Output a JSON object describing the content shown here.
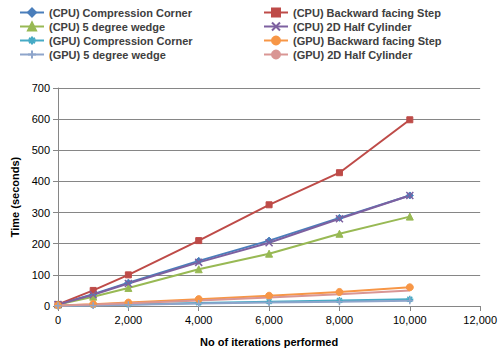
{
  "chart_data": {
    "type": "line",
    "x_label": "No of iterations performed",
    "y_label": "Time (seconds)",
    "x": [
      0,
      1000,
      2000,
      4000,
      6000,
      8000,
      10000
    ],
    "xlim": [
      0,
      12000
    ],
    "xticks": [
      0,
      2000,
      4000,
      6000,
      8000,
      10000,
      12000
    ],
    "ylim": [
      0,
      700
    ],
    "yticks": [
      0,
      100,
      200,
      300,
      400,
      500,
      600,
      700
    ],
    "grid": true,
    "legend": "top",
    "series": [
      {
        "name": "(CPU) Compression Corner",
        "color": "#4a7ebb",
        "marker": "diamond",
        "values": [
          5,
          38,
          75,
          145,
          210,
          283,
          355
        ]
      },
      {
        "name": "(CPU) Backward facing Step",
        "color": "#be4b48",
        "marker": "square",
        "values": [
          5,
          50,
          100,
          210,
          325,
          428,
          598
        ]
      },
      {
        "name": "(CPU) 5 degree wedge",
        "color": "#98b954",
        "marker": "triangle",
        "values": [
          5,
          30,
          58,
          118,
          168,
          232,
          287
        ]
      },
      {
        "name": "(CPU) 2D Half Cylinder",
        "color": "#7d60a0",
        "marker": "x",
        "values": [
          5,
          36,
          72,
          140,
          203,
          280,
          355
        ]
      },
      {
        "name": "(GPU) Compression Corner",
        "color": "#46aac5",
        "marker": "star",
        "values": [
          1,
          3,
          5,
          10,
          14,
          18,
          22
        ]
      },
      {
        "name": "(GPU) Backward facing Step",
        "color": "#f79646",
        "marker": "circle",
        "values": [
          2,
          6,
          11,
          22,
          33,
          45,
          60
        ]
      },
      {
        "name": "(GPU) 5 degree wedge",
        "color": "#8ea5cb",
        "marker": "plus",
        "values": [
          1,
          2,
          4,
          8,
          11,
          14,
          17
        ]
      },
      {
        "name": "(GPU) 2D Half Cylinder",
        "color": "#d99694",
        "marker": "none",
        "values": [
          2,
          5,
          9,
          18,
          27,
          38,
          50
        ]
      }
    ]
  }
}
